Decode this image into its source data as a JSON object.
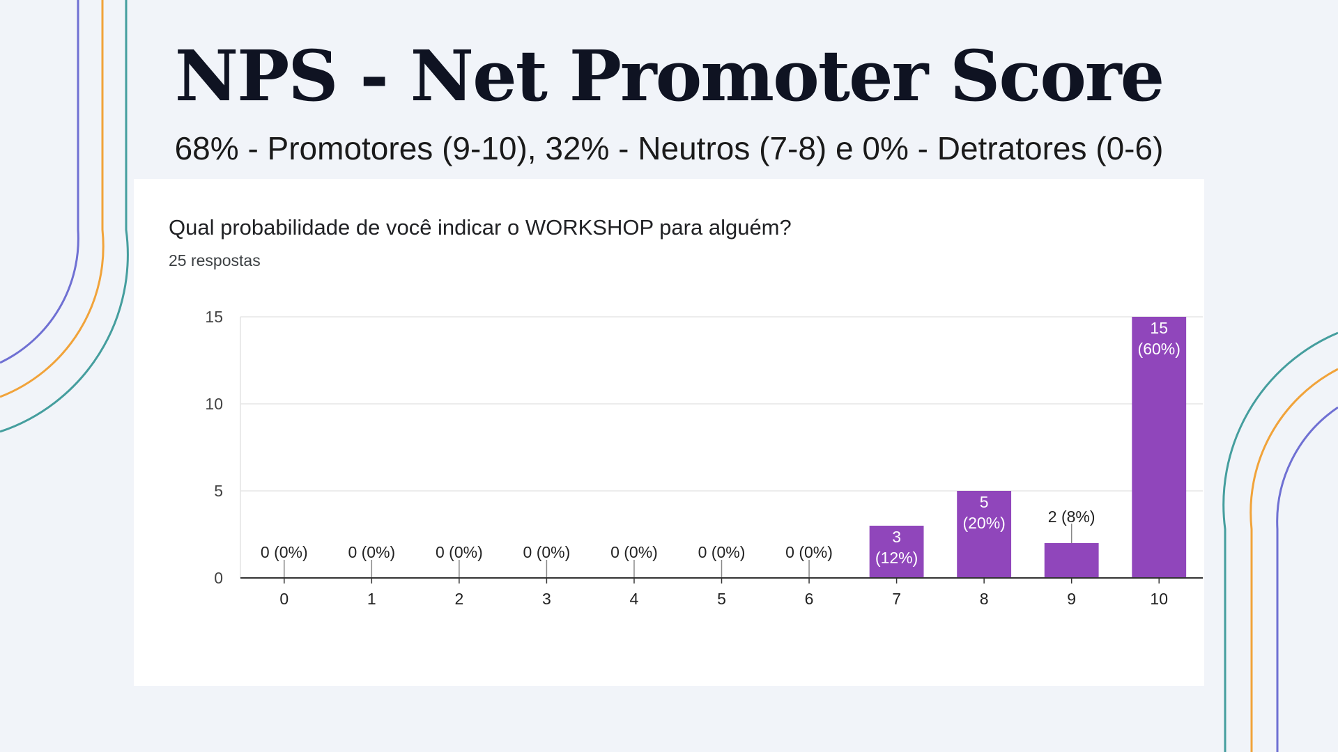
{
  "slide": {
    "title": "NPS - Net Promoter Score",
    "subtitle": "68% - Promotores (9-10), 32% - Neutros (7-8) e 0% - Detratores (0-6)"
  },
  "form": {
    "question": "Qual probabilidade de você indicar o WORKSHOP para alguém?",
    "responses_label": "25 respostas"
  },
  "colors": {
    "bar": "#9046bb",
    "line_purple": "#6f70d3",
    "line_orange": "#f1a33a",
    "line_teal": "#459e9e"
  },
  "chart_data": {
    "type": "bar",
    "categories": [
      "0",
      "1",
      "2",
      "3",
      "4",
      "5",
      "6",
      "7",
      "8",
      "9",
      "10"
    ],
    "values": [
      0,
      0,
      0,
      0,
      0,
      0,
      0,
      3,
      5,
      2,
      15
    ],
    "data_labels": [
      "0 (0%)",
      "0 (0%)",
      "0 (0%)",
      "0 (0%)",
      "0 (0%)",
      "0 (0%)",
      "0 (0%)",
      "3 (12%)",
      "5 (20%)",
      "2 (8%)",
      "15 (60%)"
    ],
    "title": "Qual probabilidade de você indicar o WORKSHOP para alguém?",
    "xlabel": "",
    "ylabel": "",
    "ylim": [
      0,
      15
    ],
    "yticks": [
      0,
      5,
      10,
      15
    ],
    "grid": true,
    "legend": "none"
  }
}
